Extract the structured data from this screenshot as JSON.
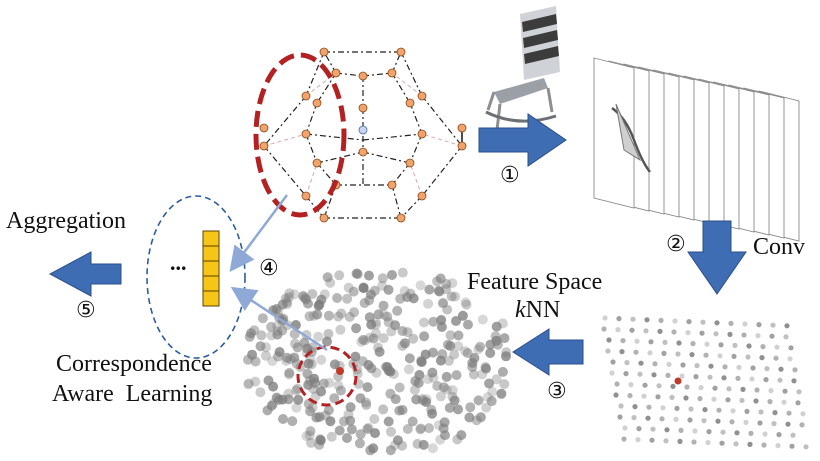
{
  "labels": {
    "aggregation": "Aggregation",
    "conv": "Conv",
    "feature_space": "Feature Space",
    "knn_k": "k",
    "knn_rest": "NN",
    "correspondence": "Correspondence",
    "aware_learning": "Aware  Learning",
    "ellipsis": "..."
  },
  "steps": [
    "①",
    "②",
    "③",
    "④",
    "⑤"
  ],
  "colors": {
    "arrow_blue": "#3f6db4",
    "arrow_outline": "#2b4f8a",
    "red_highlight": "#b22222",
    "node_orange": "#f0a46c",
    "feature_yellow": "#f5c518",
    "link_blue": "#8fa9d6",
    "dashed_blue": "#2e5c9c",
    "point_gray": "#7a7a7a"
  },
  "icons": [
    "chair-model-icon"
  ]
}
